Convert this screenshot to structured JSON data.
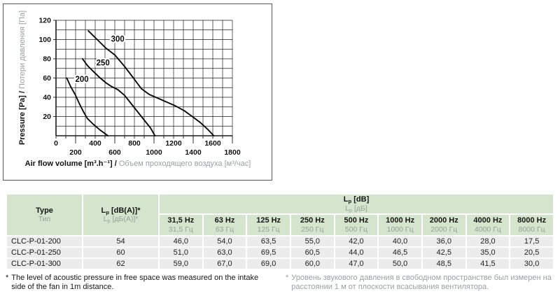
{
  "chart_data": {
    "type": "line",
    "title": "",
    "xlabel_en": "Air flow volume [m³.h⁻¹] / ",
    "xlabel_ru": "Объем проходящего воздуха [м³/час]",
    "ylabel_en": "Pressure [Pa] / ",
    "ylabel_ru": "Потери давления [Па]",
    "xlim": [
      0,
      1800
    ],
    "ylim": [
      0,
      120
    ],
    "x_grid_step": 100,
    "y_grid_step": 10,
    "x_tick_labels_row1": [
      0,
      400,
      800,
      1200,
      1600
    ],
    "x_tick_labels_row2": [
      200,
      600,
      1000,
      1400,
      1800
    ],
    "y_tick_labels": [
      20,
      40,
      60,
      80,
      100,
      120
    ],
    "grid": true,
    "series": [
      {
        "name": "200",
        "label_xy": [
          265,
          56
        ],
        "points": [
          [
            110,
            60
          ],
          [
            150,
            51
          ],
          [
            195,
            43
          ],
          [
            240,
            33
          ],
          [
            280,
            25
          ],
          [
            320,
            18
          ],
          [
            380,
            12
          ],
          [
            450,
            6
          ],
          [
            530,
            0
          ]
        ]
      },
      {
        "name": "250",
        "label_xy": [
          480,
          73
        ],
        "points": [
          [
            270,
            80
          ],
          [
            320,
            73
          ],
          [
            380,
            67
          ],
          [
            440,
            61
          ],
          [
            510,
            55
          ],
          [
            570,
            51
          ],
          [
            630,
            48
          ],
          [
            700,
            42
          ],
          [
            770,
            33
          ],
          [
            840,
            24
          ],
          [
            910,
            15
          ],
          [
            965,
            8
          ],
          [
            1010,
            0
          ]
        ]
      },
      {
        "name": "300",
        "label_xy": [
          630,
          98
        ],
        "points": [
          [
            330,
            109
          ],
          [
            420,
            100
          ],
          [
            510,
            91
          ],
          [
            600,
            84
          ],
          [
            700,
            72
          ],
          [
            790,
            60
          ],
          [
            870,
            49
          ],
          [
            950,
            43
          ],
          [
            1040,
            39
          ],
          [
            1130,
            35
          ],
          [
            1220,
            31
          ],
          [
            1310,
            26
          ],
          [
            1390,
            20
          ],
          [
            1470,
            14
          ],
          [
            1545,
            7
          ],
          [
            1610,
            0
          ]
        ]
      }
    ]
  },
  "table": {
    "col_type": {
      "en": "Type",
      "ru": "Тип"
    },
    "col_lpa": {
      "letter": "L",
      "sub": "p",
      "en_rest": " [dB(A)]*",
      "ru_rest": " [дБ(А)]*"
    },
    "col_lp_db": {
      "letter": "L",
      "sub": "p",
      "en_rest": " [dB]",
      "ru_rest": " [дБ]"
    },
    "freq_cols": [
      {
        "en": "31,5 Hz",
        "ru": "31,5 Гц"
      },
      {
        "en": "63 Hz",
        "ru": "63 Гц"
      },
      {
        "en": "125 Hz",
        "ru": "125 Гц"
      },
      {
        "en": "250 Hz",
        "ru": "250 Гц"
      },
      {
        "en": "500 Hz",
        "ru": "500 Гц"
      },
      {
        "en": "1000 Hz",
        "ru": "1000 Гц"
      },
      {
        "en": "2000 Hz",
        "ru": "2000 Гц"
      },
      {
        "en": "4000 Hz",
        "ru": "4000 Гц"
      },
      {
        "en": "8000 Hz",
        "ru": "8000 Гц"
      }
    ],
    "rows": [
      {
        "type": "CLC-P-01-200",
        "lpa": "54",
        "v": [
          "46,0",
          "54,0",
          "63,5",
          "55,0",
          "42,0",
          "40,0",
          "36,0",
          "28,0",
          "17,5"
        ]
      },
      {
        "type": "CLC-P-01-250",
        "lpa": "60",
        "v": [
          "51,0",
          "63,0",
          "69,5",
          "60,5",
          "44,0",
          "46,5",
          "42,5",
          "35,0",
          "20,5"
        ]
      },
      {
        "type": "CLC-P-01-300",
        "lpa": "62",
        "v": [
          "59,0",
          "67,0",
          "69,0",
          "60,0",
          "47,0",
          "50,0",
          "48,5",
          "41,5",
          "30,0"
        ]
      }
    ]
  },
  "footnotes": {
    "star": "*",
    "en": "The level of acoustic pressure in free space was measured on the intake side of the fan in 1m distance.",
    "ru": "Уровень звукового давления в свободном пространстве был измерен на расстоянии 1 м от плоскости всасывания вентилятора."
  }
}
